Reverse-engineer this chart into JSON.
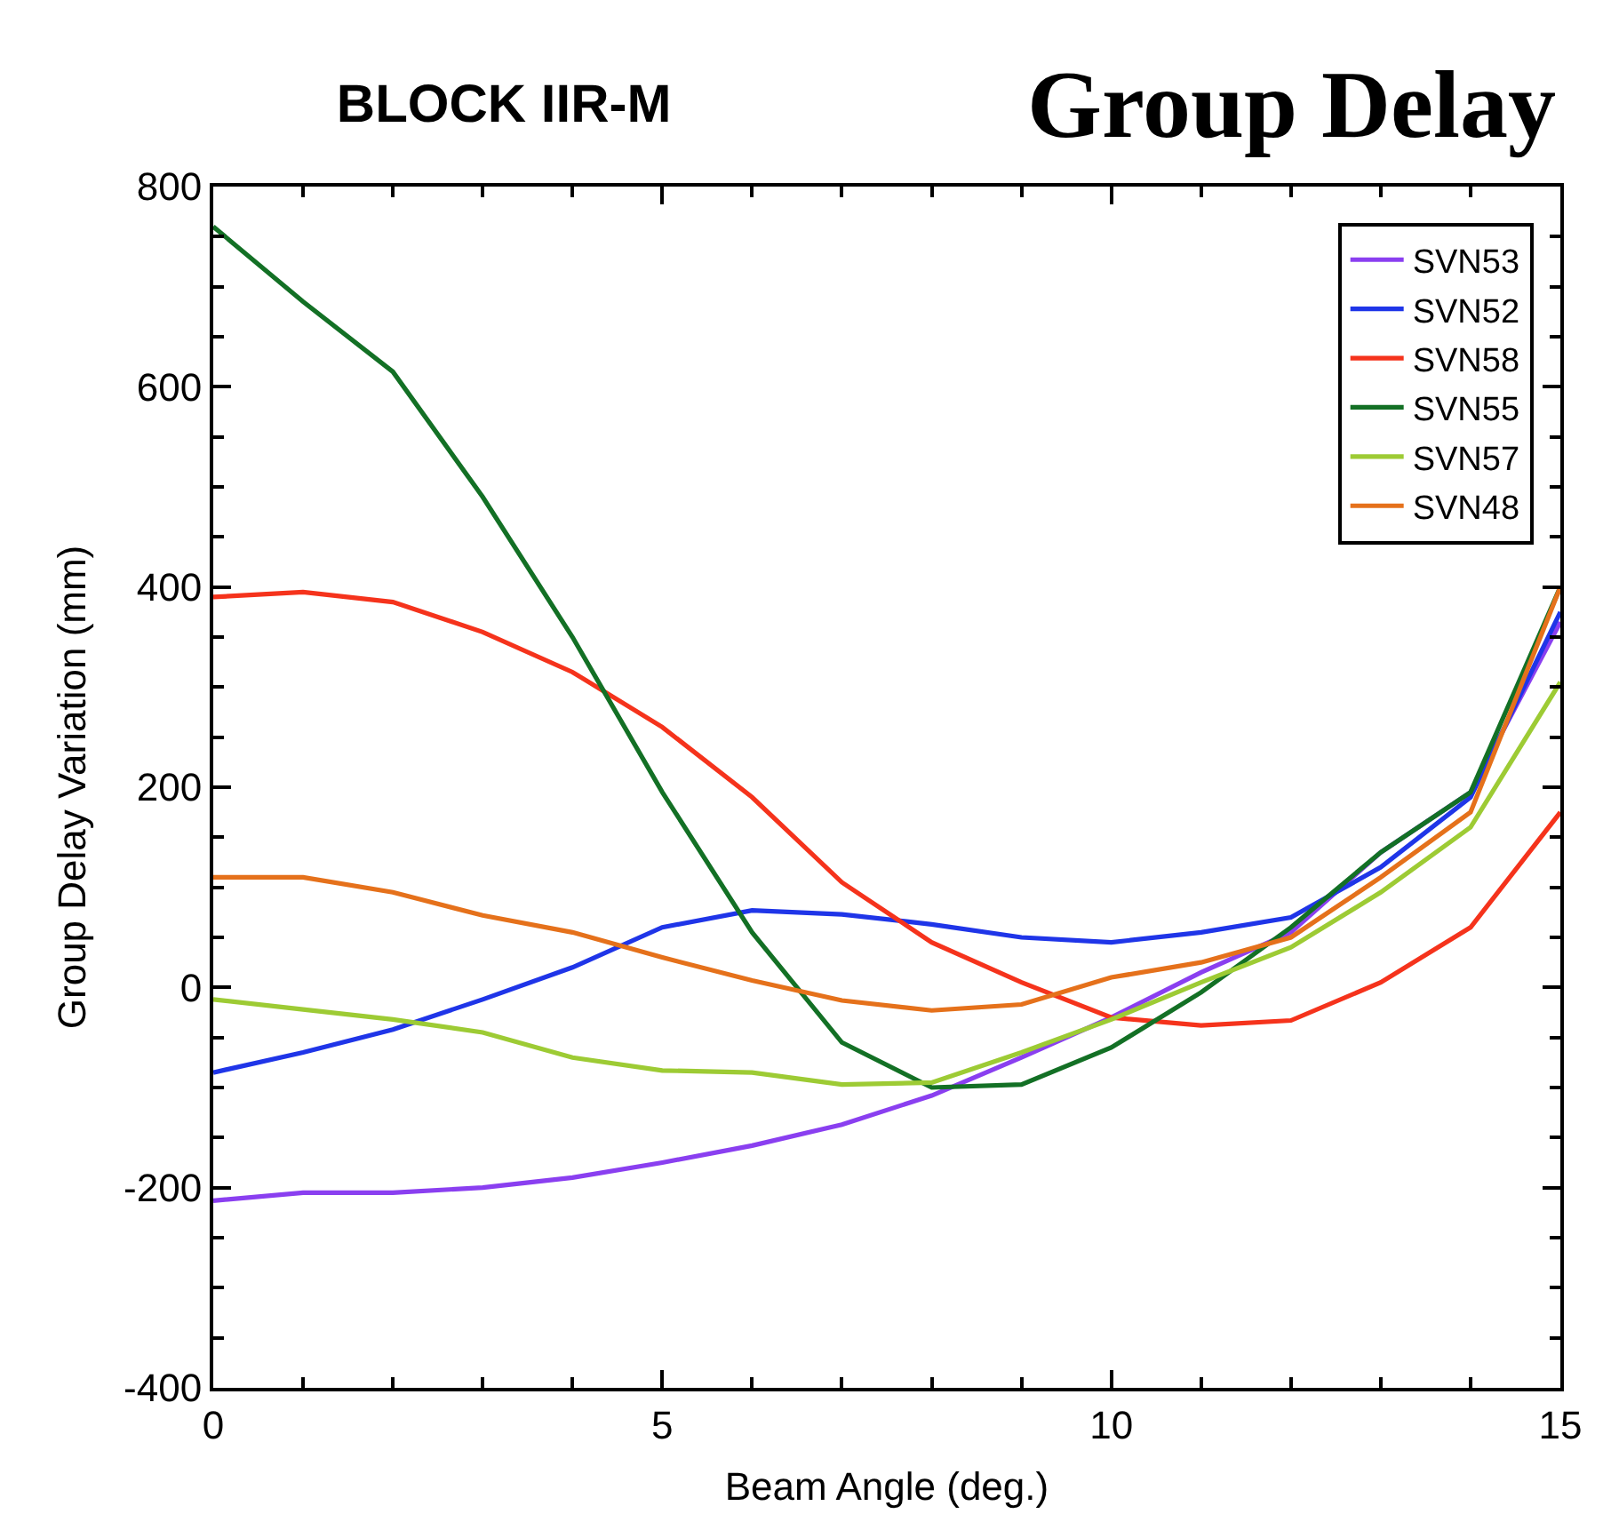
{
  "chart_data": {
    "type": "line",
    "title": "BLOCK IIR-M",
    "subtitle": "Group Delay",
    "xlabel": "Beam Angle (deg.)",
    "ylabel": "Group Delay Variation (mm)",
    "x": [
      0,
      1,
      2,
      3,
      4,
      5,
      6,
      7,
      8,
      9,
      10,
      11,
      12,
      13,
      14,
      15
    ],
    "xlim": [
      0,
      15
    ],
    "xticks": [
      0,
      5,
      10,
      15
    ],
    "ylim": [
      -400,
      800
    ],
    "yticks": [
      -400,
      -200,
      0,
      200,
      400,
      600,
      800
    ],
    "legend": "top right",
    "marker": "none",
    "line_style": "solid",
    "series": [
      {
        "name": "SVN53",
        "color": "#8a3ff0",
        "values": [
          -213,
          -205,
          -205,
          -200,
          -190,
          -175,
          -158,
          -137,
          -108,
          -70,
          -30,
          15,
          55,
          135,
          195,
          365
        ]
      },
      {
        "name": "SVN52",
        "color": "#1f35e8",
        "values": [
          -85,
          -65,
          -42,
          -12,
          20,
          60,
          77,
          73,
          63,
          50,
          45,
          55,
          70,
          120,
          190,
          375
        ]
      },
      {
        "name": "SVN58",
        "color": "#f5331c",
        "values": [
          390,
          395,
          385,
          355,
          315,
          260,
          190,
          105,
          45,
          5,
          -30,
          -38,
          -33,
          5,
          60,
          175
        ]
      },
      {
        "name": "SVN55",
        "color": "#137025",
        "values": [
          760,
          685,
          615,
          490,
          350,
          195,
          55,
          -55,
          -100,
          -97,
          -60,
          -5,
          60,
          135,
          195,
          400
        ]
      },
      {
        "name": "SVN57",
        "color": "#9dcb34",
        "values": [
          -12,
          -22,
          -32,
          -45,
          -70,
          -83,
          -85,
          -97,
          -95,
          -65,
          -32,
          5,
          40,
          95,
          160,
          305
        ]
      },
      {
        "name": "SVN48",
        "color": "#e5711b",
        "values": [
          110,
          110,
          95,
          72,
          55,
          30,
          7,
          -13,
          -23,
          -17,
          10,
          25,
          50,
          110,
          175,
          400
        ]
      }
    ]
  }
}
